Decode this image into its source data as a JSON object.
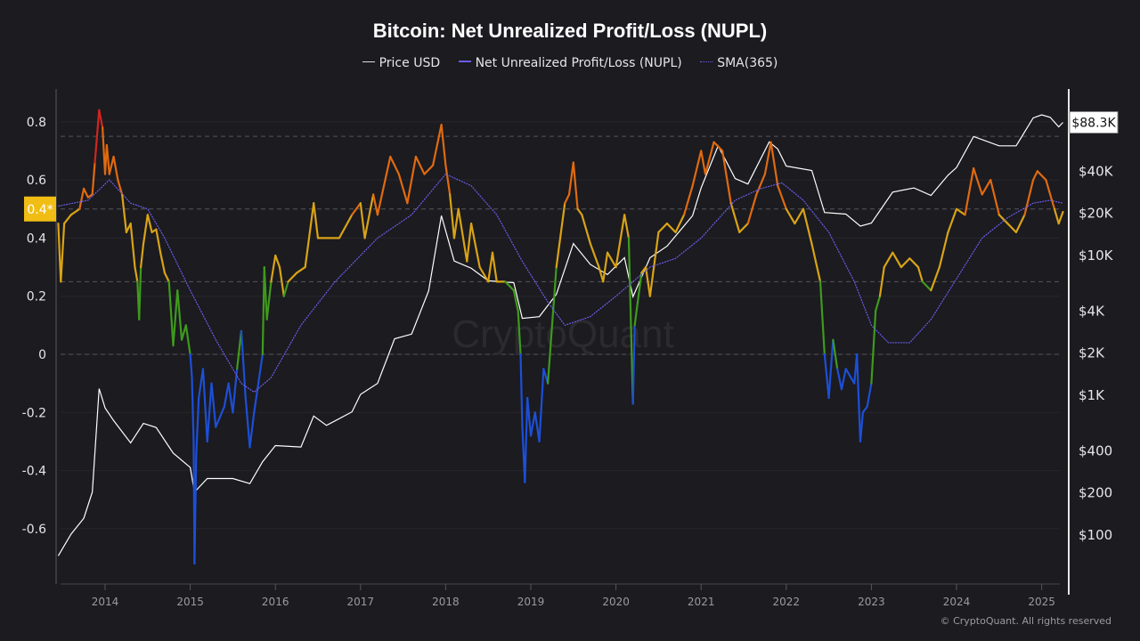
{
  "chart_data": {
    "type": "line",
    "title": "Bitcoin: Net Unrealized Profit/Loss (NUPL)",
    "watermark": "CryptoQuant",
    "legend": [
      "Price USD",
      "Net Unrealized Profit/Loss (NUPL)",
      "SMA(365)"
    ],
    "legend_position": "top",
    "grid": true,
    "x_ticks": [
      "2014",
      "2015",
      "2016",
      "2017",
      "2018",
      "2019",
      "2020",
      "2021",
      "2022",
      "2023",
      "2024",
      "2025"
    ],
    "left_axis": {
      "ticks": [
        "0.8",
        "0.6",
        "0.4",
        "0.2",
        "0",
        "-0.2",
        "-0.4",
        "-0.6"
      ],
      "range": [
        -0.72,
        0.88
      ],
      "reference_lines": [
        0.75,
        0.5,
        0.25,
        0
      ]
    },
    "right_axis": {
      "scale": "log",
      "ticks": [
        "$40K",
        "$20K",
        "$10K",
        "$4K",
        "$2K",
        "$1K",
        "$400",
        "$200",
        "$100"
      ],
      "tick_values": [
        40000,
        20000,
        10000,
        4000,
        2000,
        1000,
        400,
        200,
        100
      ],
      "current_label": "$88.3K"
    },
    "current_nupl_label": "0.4*",
    "colors": {
      "price": "#ffffff",
      "sma": "#6b5ce7",
      "capitulation": "#1d4fd6",
      "hope_fear": "#3f9a1c",
      "optimism_anxiety": "#d9a316",
      "belief_denial": "#e06a10",
      "euphoria_greed": "#d0261e",
      "label_bg": "#f0bd14"
    },
    "series": [
      {
        "name": "Net Unrealized Profit/Loss (NUPL)",
        "points": [
          [
            2013.45,
            0.45
          ],
          [
            2013.48,
            0.25
          ],
          [
            2013.52,
            0.45
          ],
          [
            2013.6,
            0.48
          ],
          [
            2013.7,
            0.5
          ],
          [
            2013.75,
            0.57
          ],
          [
            2013.8,
            0.54
          ],
          [
            2013.85,
            0.55
          ],
          [
            2013.88,
            0.66
          ],
          [
            2013.93,
            0.84
          ],
          [
            2013.97,
            0.78
          ],
          [
            2014.0,
            0.62
          ],
          [
            2014.02,
            0.72
          ],
          [
            2014.05,
            0.62
          ],
          [
            2014.1,
            0.68
          ],
          [
            2014.15,
            0.6
          ],
          [
            2014.2,
            0.55
          ],
          [
            2014.25,
            0.42
          ],
          [
            2014.3,
            0.45
          ],
          [
            2014.35,
            0.3
          ],
          [
            2014.38,
            0.25
          ],
          [
            2014.4,
            0.12
          ],
          [
            2014.42,
            0.3
          ],
          [
            2014.45,
            0.38
          ],
          [
            2014.5,
            0.48
          ],
          [
            2014.55,
            0.42
          ],
          [
            2014.6,
            0.43
          ],
          [
            2014.65,
            0.35
          ],
          [
            2014.7,
            0.28
          ],
          [
            2014.75,
            0.25
          ],
          [
            2014.78,
            0.12
          ],
          [
            2014.8,
            0.03
          ],
          [
            2014.85,
            0.22
          ],
          [
            2014.9,
            0.05
          ],
          [
            2014.95,
            0.1
          ],
          [
            2015.0,
            0.0
          ],
          [
            2015.02,
            -0.08
          ],
          [
            2015.04,
            -0.3
          ],
          [
            2015.05,
            -0.72
          ],
          [
            2015.07,
            -0.35
          ],
          [
            2015.1,
            -0.15
          ],
          [
            2015.15,
            -0.05
          ],
          [
            2015.2,
            -0.3
          ],
          [
            2015.25,
            -0.1
          ],
          [
            2015.3,
            -0.25
          ],
          [
            2015.4,
            -0.18
          ],
          [
            2015.45,
            -0.1
          ],
          [
            2015.5,
            -0.2
          ],
          [
            2015.55,
            -0.05
          ],
          [
            2015.6,
            0.08
          ],
          [
            2015.65,
            -0.15
          ],
          [
            2015.7,
            -0.32
          ],
          [
            2015.75,
            -0.2
          ],
          [
            2015.8,
            -0.1
          ],
          [
            2015.85,
            0.0
          ],
          [
            2015.87,
            0.3
          ],
          [
            2015.9,
            0.12
          ],
          [
            2015.95,
            0.25
          ],
          [
            2016.0,
            0.34
          ],
          [
            2016.05,
            0.3
          ],
          [
            2016.1,
            0.2
          ],
          [
            2016.15,
            0.25
          ],
          [
            2016.25,
            0.28
          ],
          [
            2016.35,
            0.3
          ],
          [
            2016.45,
            0.52
          ],
          [
            2016.5,
            0.4
          ],
          [
            2016.6,
            0.4
          ],
          [
            2016.75,
            0.4
          ],
          [
            2016.9,
            0.48
          ],
          [
            2017.0,
            0.52
          ],
          [
            2017.05,
            0.4
          ],
          [
            2017.15,
            0.55
          ],
          [
            2017.2,
            0.48
          ],
          [
            2017.35,
            0.68
          ],
          [
            2017.45,
            0.62
          ],
          [
            2017.55,
            0.52
          ],
          [
            2017.65,
            0.68
          ],
          [
            2017.75,
            0.62
          ],
          [
            2017.85,
            0.65
          ],
          [
            2017.95,
            0.79
          ],
          [
            2018.0,
            0.65
          ],
          [
            2018.05,
            0.55
          ],
          [
            2018.1,
            0.4
          ],
          [
            2018.15,
            0.5
          ],
          [
            2018.25,
            0.32
          ],
          [
            2018.3,
            0.45
          ],
          [
            2018.4,
            0.3
          ],
          [
            2018.5,
            0.25
          ],
          [
            2018.55,
            0.35
          ],
          [
            2018.6,
            0.25
          ],
          [
            2018.7,
            0.25
          ],
          [
            2018.8,
            0.22
          ],
          [
            2018.85,
            0.15
          ],
          [
            2018.88,
            0.0
          ],
          [
            2018.9,
            -0.25
          ],
          [
            2018.93,
            -0.44
          ],
          [
            2018.96,
            -0.15
          ],
          [
            2019.0,
            -0.28
          ],
          [
            2019.05,
            -0.2
          ],
          [
            2019.1,
            -0.3
          ],
          [
            2019.15,
            -0.05
          ],
          [
            2019.2,
            -0.1
          ],
          [
            2019.25,
            0.1
          ],
          [
            2019.3,
            0.3
          ],
          [
            2019.4,
            0.52
          ],
          [
            2019.45,
            0.55
          ],
          [
            2019.5,
            0.66
          ],
          [
            2019.55,
            0.5
          ],
          [
            2019.6,
            0.48
          ],
          [
            2019.7,
            0.38
          ],
          [
            2019.8,
            0.3
          ],
          [
            2019.85,
            0.25
          ],
          [
            2019.9,
            0.35
          ],
          [
            2020.0,
            0.3
          ],
          [
            2020.1,
            0.48
          ],
          [
            2020.15,
            0.4
          ],
          [
            2020.2,
            -0.17
          ],
          [
            2020.22,
            0.1
          ],
          [
            2020.3,
            0.28
          ],
          [
            2020.35,
            0.3
          ],
          [
            2020.4,
            0.2
          ],
          [
            2020.5,
            0.42
          ],
          [
            2020.6,
            0.45
          ],
          [
            2020.7,
            0.42
          ],
          [
            2020.8,
            0.48
          ],
          [
            2020.9,
            0.58
          ],
          [
            2021.0,
            0.7
          ],
          [
            2021.05,
            0.62
          ],
          [
            2021.15,
            0.73
          ],
          [
            2021.25,
            0.7
          ],
          [
            2021.35,
            0.52
          ],
          [
            2021.45,
            0.42
          ],
          [
            2021.55,
            0.45
          ],
          [
            2021.65,
            0.55
          ],
          [
            2021.75,
            0.62
          ],
          [
            2021.82,
            0.73
          ],
          [
            2021.9,
            0.58
          ],
          [
            2022.0,
            0.5
          ],
          [
            2022.1,
            0.45
          ],
          [
            2022.2,
            0.5
          ],
          [
            2022.3,
            0.38
          ],
          [
            2022.4,
            0.25
          ],
          [
            2022.45,
            0.0
          ],
          [
            2022.5,
            -0.15
          ],
          [
            2022.55,
            0.05
          ],
          [
            2022.6,
            -0.05
          ],
          [
            2022.65,
            -0.12
          ],
          [
            2022.7,
            -0.05
          ],
          [
            2022.8,
            -0.1
          ],
          [
            2022.83,
            0.0
          ],
          [
            2022.87,
            -0.3
          ],
          [
            2022.9,
            -0.2
          ],
          [
            2022.95,
            -0.18
          ],
          [
            2023.0,
            -0.1
          ],
          [
            2023.05,
            0.15
          ],
          [
            2023.1,
            0.2
          ],
          [
            2023.15,
            0.3
          ],
          [
            2023.25,
            0.35
          ],
          [
            2023.35,
            0.3
          ],
          [
            2023.45,
            0.33
          ],
          [
            2023.55,
            0.3
          ],
          [
            2023.6,
            0.25
          ],
          [
            2023.7,
            0.22
          ],
          [
            2023.8,
            0.3
          ],
          [
            2023.9,
            0.42
          ],
          [
            2024.0,
            0.5
          ],
          [
            2024.1,
            0.48
          ],
          [
            2024.2,
            0.64
          ],
          [
            2024.3,
            0.55
          ],
          [
            2024.4,
            0.6
          ],
          [
            2024.5,
            0.48
          ],
          [
            2024.6,
            0.45
          ],
          [
            2024.7,
            0.42
          ],
          [
            2024.8,
            0.48
          ],
          [
            2024.9,
            0.6
          ],
          [
            2024.95,
            0.63
          ],
          [
            2025.05,
            0.6
          ],
          [
            2025.15,
            0.5
          ],
          [
            2025.2,
            0.45
          ],
          [
            2025.25,
            0.49
          ]
        ]
      },
      {
        "name": "SMA(365)",
        "points": [
          [
            2013.45,
            0.51
          ],
          [
            2013.8,
            0.53
          ],
          [
            2014.05,
            0.6
          ],
          [
            2014.3,
            0.52
          ],
          [
            2014.5,
            0.5
          ],
          [
            2014.7,
            0.4
          ],
          [
            2015.0,
            0.22
          ],
          [
            2015.3,
            0.05
          ],
          [
            2015.6,
            -0.1
          ],
          [
            2015.75,
            -0.13
          ],
          [
            2015.95,
            -0.08
          ],
          [
            2016.3,
            0.1
          ],
          [
            2016.7,
            0.25
          ],
          [
            2017.2,
            0.4
          ],
          [
            2017.6,
            0.48
          ],
          [
            2018.0,
            0.62
          ],
          [
            2018.3,
            0.58
          ],
          [
            2018.6,
            0.48
          ],
          [
            2018.9,
            0.32
          ],
          [
            2019.2,
            0.18
          ],
          [
            2019.4,
            0.1
          ],
          [
            2019.7,
            0.13
          ],
          [
            2020.0,
            0.2
          ],
          [
            2020.4,
            0.3
          ],
          [
            2020.7,
            0.33
          ],
          [
            2021.0,
            0.4
          ],
          [
            2021.4,
            0.53
          ],
          [
            2021.7,
            0.57
          ],
          [
            2021.95,
            0.59
          ],
          [
            2022.2,
            0.53
          ],
          [
            2022.5,
            0.42
          ],
          [
            2022.8,
            0.25
          ],
          [
            2023.0,
            0.1
          ],
          [
            2023.2,
            0.04
          ],
          [
            2023.45,
            0.04
          ],
          [
            2023.7,
            0.12
          ],
          [
            2024.0,
            0.26
          ],
          [
            2024.3,
            0.4
          ],
          [
            2024.6,
            0.47
          ],
          [
            2024.9,
            0.52
          ],
          [
            2025.1,
            0.53
          ],
          [
            2025.25,
            0.52
          ]
        ]
      },
      {
        "name": "Price USD",
        "points": [
          [
            2013.45,
            70
          ],
          [
            2013.6,
            100
          ],
          [
            2013.75,
            130
          ],
          [
            2013.85,
            200
          ],
          [
            2013.93,
            1100
          ],
          [
            2014.0,
            800
          ],
          [
            2014.1,
            650
          ],
          [
            2014.3,
            450
          ],
          [
            2014.45,
            620
          ],
          [
            2014.6,
            580
          ],
          [
            2014.8,
            380
          ],
          [
            2015.0,
            300
          ],
          [
            2015.05,
            200
          ],
          [
            2015.2,
            250
          ],
          [
            2015.5,
            250
          ],
          [
            2015.7,
            230
          ],
          [
            2015.85,
            330
          ],
          [
            2016.0,
            430
          ],
          [
            2016.3,
            420
          ],
          [
            2016.45,
            700
          ],
          [
            2016.6,
            600
          ],
          [
            2016.9,
            750
          ],
          [
            2017.0,
            1000
          ],
          [
            2017.2,
            1200
          ],
          [
            2017.4,
            2500
          ],
          [
            2017.6,
            2700
          ],
          [
            2017.8,
            5500
          ],
          [
            2017.95,
            19000
          ],
          [
            2018.1,
            9000
          ],
          [
            2018.3,
            8000
          ],
          [
            2018.5,
            6500
          ],
          [
            2018.8,
            6300
          ],
          [
            2018.9,
            3500
          ],
          [
            2019.1,
            3600
          ],
          [
            2019.3,
            5200
          ],
          [
            2019.5,
            12000
          ],
          [
            2019.7,
            8500
          ],
          [
            2019.9,
            7200
          ],
          [
            2020.1,
            9500
          ],
          [
            2020.2,
            5000
          ],
          [
            2020.4,
            9500
          ],
          [
            2020.6,
            11500
          ],
          [
            2020.9,
            19000
          ],
          [
            2021.0,
            30000
          ],
          [
            2021.2,
            60000
          ],
          [
            2021.4,
            35000
          ],
          [
            2021.55,
            32000
          ],
          [
            2021.8,
            64000
          ],
          [
            2021.9,
            57000
          ],
          [
            2022.0,
            43000
          ],
          [
            2022.3,
            40000
          ],
          [
            2022.45,
            20000
          ],
          [
            2022.7,
            19500
          ],
          [
            2022.87,
            16000
          ],
          [
            2023.0,
            16800
          ],
          [
            2023.25,
            28000
          ],
          [
            2023.5,
            30000
          ],
          [
            2023.7,
            26500
          ],
          [
            2023.9,
            37000
          ],
          [
            2024.0,
            42000
          ],
          [
            2024.2,
            70000
          ],
          [
            2024.5,
            60000
          ],
          [
            2024.7,
            60000
          ],
          [
            2024.9,
            95000
          ],
          [
            2025.0,
            100000
          ],
          [
            2025.1,
            96000
          ],
          [
            2025.2,
            82000
          ],
          [
            2025.25,
            88300
          ]
        ]
      }
    ]
  },
  "footer": "© CryptoQuant. All rights reserved"
}
